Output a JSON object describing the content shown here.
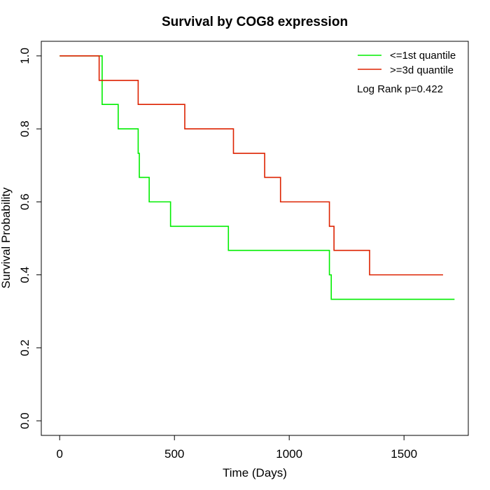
{
  "chart_data": {
    "type": "line",
    "step": true,
    "title": "Survival by COG8 expression",
    "xlabel": "Time (Days)",
    "ylabel": "Survival Probability",
    "xlim": [
      -80,
      1780
    ],
    "ylim": [
      -0.04,
      1.04
    ],
    "xticks": [
      0,
      500,
      1000,
      1500
    ],
    "yticks": [
      0.0,
      0.2,
      0.4,
      0.6,
      0.8,
      1.0
    ],
    "ytick_labels": [
      "0.0",
      "0.2",
      "0.4",
      "0.6",
      "0.8",
      "1.0"
    ],
    "grid": false,
    "legend_position": "top-right",
    "annotation": "Log Rank p=0.422",
    "series": [
      {
        "name": "<=1st quantile",
        "color": "#00ee00",
        "x": [
          0,
          178,
          185,
          255,
          342,
          347,
          390,
          483,
          735,
          1175,
          1183,
          1720
        ],
        "y": [
          1.0,
          1.0,
          0.867,
          0.8,
          0.733,
          0.667,
          0.6,
          0.533,
          0.467,
          0.4,
          0.333,
          0.333
        ]
      },
      {
        "name": ">=3d quantile",
        "color": "#dd2200",
        "x": [
          0,
          172,
          342,
          545,
          757,
          893,
          962,
          1175,
          1195,
          1350,
          1670
        ],
        "y": [
          1.0,
          0.933,
          0.867,
          0.8,
          0.733,
          0.667,
          0.6,
          0.533,
          0.467,
          0.4,
          0.4
        ]
      }
    ]
  }
}
